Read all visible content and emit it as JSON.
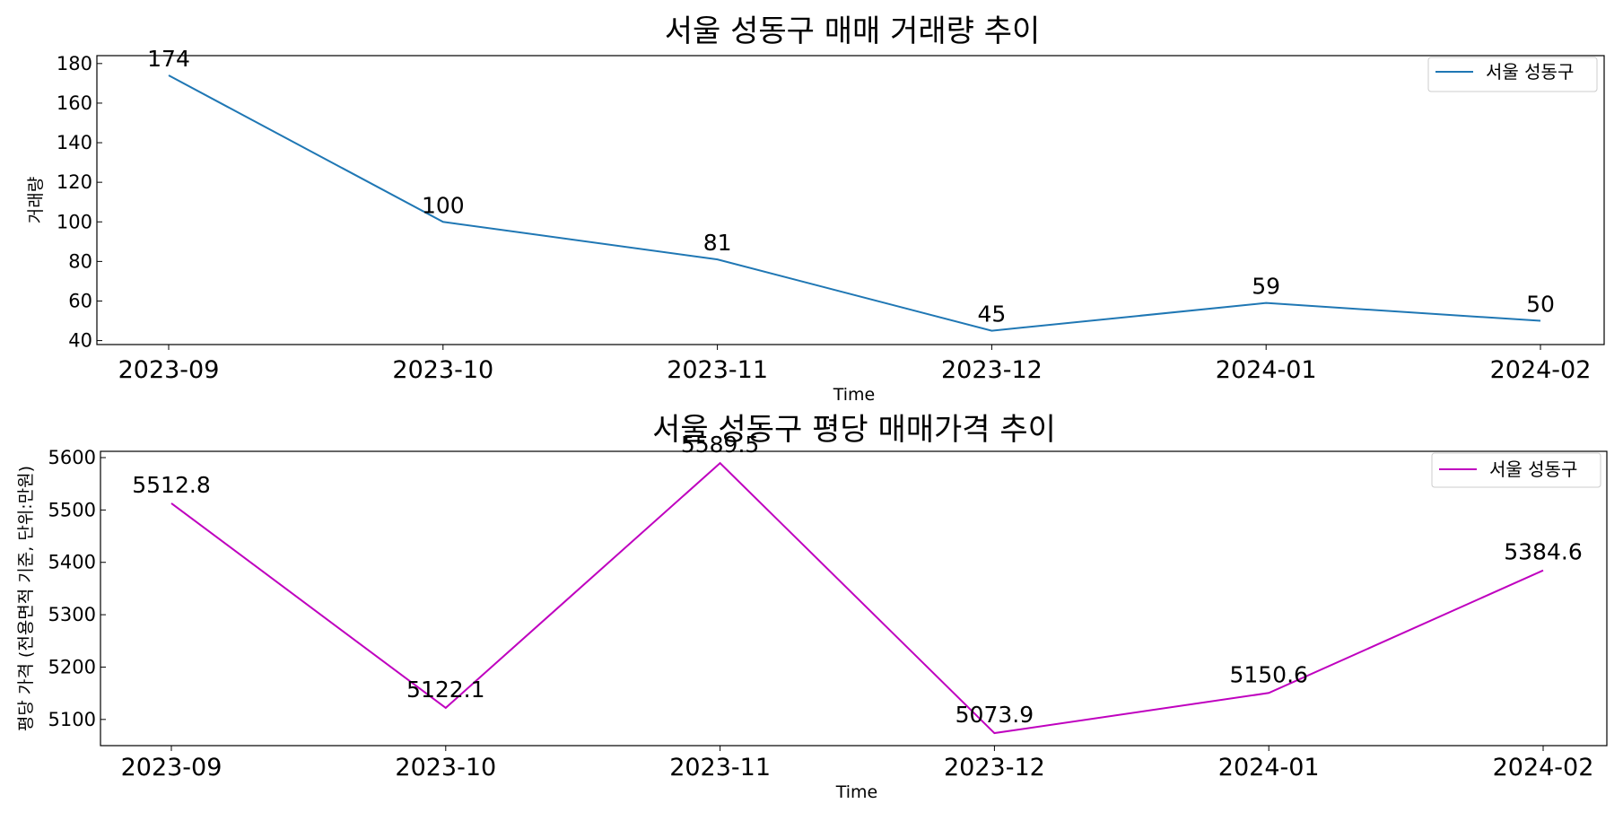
{
  "chart_data": [
    {
      "type": "line",
      "title": "서울 성동구 매매 거래량 추이",
      "xlabel": "Time",
      "ylabel": "거래량",
      "categories": [
        "2023-09",
        "2023-10",
        "2023-11",
        "2023-12",
        "2024-01",
        "2024-02"
      ],
      "series": [
        {
          "name": "서울 성동구",
          "values": [
            174,
            100,
            81,
            45,
            59,
            50
          ],
          "labels": [
            "174",
            "100",
            "81",
            "45",
            "59",
            "50"
          ]
        }
      ],
      "ylim": [
        38,
        184
      ],
      "yticks": [
        40,
        60,
        80,
        100,
        120,
        140,
        160,
        180
      ],
      "color": "#1f77b4",
      "legend": "top-right",
      "grid": false
    },
    {
      "type": "line",
      "title": "서울 성동구 평당 매매가격 추이",
      "xlabel": "Time",
      "ylabel": "평당 가격 (전용면적 기준, 단위:만원)",
      "categories": [
        "2023-09",
        "2023-10",
        "2023-11",
        "2023-12",
        "2024-01",
        "2024-02"
      ],
      "series": [
        {
          "name": "서울 성동구",
          "values": [
            5512.8,
            5122.1,
            5589.5,
            5073.9,
            5150.6,
            5384.6
          ],
          "labels": [
            "5512.8",
            "5122.1",
            "5589.5",
            "5073.9",
            "5150.6",
            "5384.6"
          ]
        }
      ],
      "ylim": [
        5050,
        5612
      ],
      "yticks": [
        5100,
        5200,
        5300,
        5400,
        5500,
        5600
      ],
      "color": "#bf00bf",
      "legend": "top-right",
      "grid": false
    }
  ]
}
